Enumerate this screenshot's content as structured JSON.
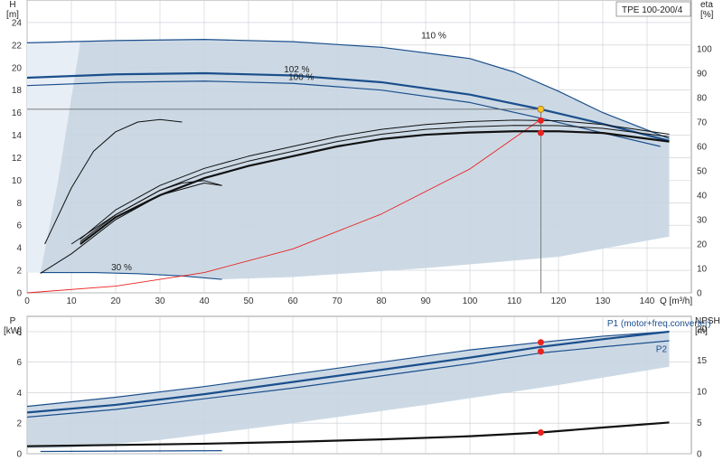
{
  "model": "TPE 100-200/4",
  "colors": {
    "envelope": "#c7d5e2",
    "envelope_light": "#e8eef6",
    "curve_blue": "#1b4f8c",
    "curve_black": "#111111",
    "system": "#e8231f",
    "duty_point": "#e8231f",
    "operating_point": "#f4c430",
    "grid": "#c8ccd2"
  },
  "chart_data": [
    {
      "type": "line",
      "name": "pump-performance",
      "xlabel": "Q [m³/h]",
      "ylabel": "H\n[m]",
      "y2label": "eta\n[%]",
      "xlim": [
        0,
        150
      ],
      "ylim": [
        0,
        26
      ],
      "y2lim": [
        0,
        120
      ],
      "x_ticks": [
        0,
        10,
        20,
        30,
        40,
        50,
        60,
        70,
        80,
        90,
        100,
        110,
        120,
        130,
        140
      ],
      "y_ticks": [
        0,
        2,
        4,
        6,
        8,
        10,
        12,
        14,
        16,
        18,
        20,
        22,
        24
      ],
      "y2_ticks": [
        0,
        10,
        20,
        30,
        40,
        50,
        60,
        70,
        80,
        90,
        100
      ],
      "curve_labels": [
        "110 %",
        "102 %",
        "100 %",
        "30 %"
      ],
      "series": [
        {
          "name": "110 %",
          "axis": "H",
          "color": "#1b4f8c",
          "width": 1.2,
          "x": [
            0,
            20,
            40,
            60,
            80,
            100,
            110,
            120,
            130,
            145
          ],
          "y": [
            22.2,
            22.4,
            22.5,
            22.3,
            21.8,
            20.8,
            19.6,
            17.9,
            16.0,
            13.7
          ]
        },
        {
          "name": "102 %",
          "axis": "H",
          "color": "#1b4f8c",
          "width": 2.2,
          "x": [
            0,
            20,
            40,
            60,
            80,
            100,
            116,
            130,
            145
          ],
          "y": [
            19.1,
            19.4,
            19.5,
            19.3,
            18.7,
            17.6,
            16.3,
            15.0,
            13.5
          ]
        },
        {
          "name": "100 %",
          "axis": "H",
          "color": "#1b4f8c",
          "width": 1.2,
          "x": [
            0,
            20,
            40,
            60,
            80,
            100,
            116,
            130,
            143
          ],
          "y": [
            18.4,
            18.7,
            18.8,
            18.6,
            18.0,
            16.9,
            15.5,
            14.2,
            13.0
          ]
        },
        {
          "name": "30 %",
          "axis": "H",
          "color": "#1b4f8c",
          "width": 1.2,
          "x": [
            3,
            15,
            25,
            35,
            44
          ],
          "y": [
            1.8,
            1.8,
            1.7,
            1.5,
            1.2
          ]
        },
        {
          "name": "system",
          "axis": "H",
          "color": "#e8231f",
          "width": 0.9,
          "x": [
            0,
            20,
            40,
            60,
            80,
            100,
            116
          ],
          "y": [
            0,
            0.6,
            1.8,
            3.9,
            7.0,
            11.0,
            15.4
          ]
        },
        {
          "name": "eta-main",
          "axis": "eta",
          "color": "#111111",
          "width": 2.2,
          "x": [
            12,
            20,
            30,
            40,
            50,
            60,
            70,
            80,
            90,
            100,
            110,
            120,
            130,
            145
          ],
          "y": [
            20,
            31,
            40,
            47,
            52,
            56,
            60,
            63,
            64.8,
            65.7,
            66.2,
            66.2,
            65.5,
            62
          ]
        },
        {
          "name": "eta-upper",
          "axis": "eta",
          "color": "#111111",
          "width": 1,
          "x": [
            12,
            20,
            30,
            40,
            50,
            60,
            70,
            80,
            90,
            100,
            110,
            120,
            130,
            145
          ],
          "y": [
            22,
            34,
            44,
            51,
            56,
            60,
            64,
            67,
            69,
            70.2,
            70.8,
            70.5,
            69,
            65
          ]
        },
        {
          "name": "eta-mid",
          "axis": "eta",
          "color": "#111111",
          "width": 1,
          "x": [
            12,
            20,
            30,
            40,
            50,
            60,
            70,
            80,
            90,
            100,
            110,
            120,
            130,
            145
          ],
          "y": [
            21,
            32,
            42,
            49,
            54,
            58,
            62,
            65,
            67,
            68,
            68.6,
            68.5,
            67.4,
            64
          ]
        },
        {
          "name": "eta-30",
          "axis": "eta",
          "color": "#111111",
          "width": 1,
          "x": [
            3,
            10,
            20,
            30,
            40,
            44
          ],
          "y": [
            8,
            16,
            30,
            40,
            45,
            44
          ]
        },
        {
          "name": "eta-30-lower",
          "axis": "eta",
          "color": "#111111",
          "width": 1,
          "x": [
            10,
            20,
            30,
            35,
            40,
            44
          ],
          "y": [
            20,
            32,
            42,
            45,
            46,
            44
          ]
        },
        {
          "name": "eta-low",
          "axis": "eta",
          "color": "#111111",
          "width": 1,
          "x": [
            4,
            10,
            15,
            20,
            25,
            30,
            35
          ],
          "y": [
            20,
            43,
            58,
            66,
            70,
            71,
            70
          ]
        }
      ],
      "duty_points": [
        {
          "x": 116,
          "y": 16.3,
          "axis": "H",
          "kind": "operating"
        },
        {
          "x": 116,
          "y": 15.3,
          "axis": "H",
          "kind": "duty"
        },
        {
          "x": 116,
          "y": 14.2,
          "axis": "H",
          "kind": "duty"
        }
      ],
      "reference_lines": {
        "h": 16.3,
        "q": 116
      }
    },
    {
      "type": "line",
      "name": "power-npsh",
      "xlabel": "",
      "ylabel": "P\n[kW]",
      "y2label": "NPSH\n[m]",
      "xlim": [
        0,
        150
      ],
      "ylim": [
        0,
        9
      ],
      "y2lim": [
        0,
        22
      ],
      "y_ticks": [
        0,
        2,
        4,
        6,
        8
      ],
      "y2_ticks": [
        0,
        5,
        10,
        15,
        20
      ],
      "curve_labels": [
        "P1 (motor+freq.converter)",
        "P2"
      ],
      "series": [
        {
          "name": "P1 (motor+freq.converter)",
          "axis": "P",
          "color": "#1b4f8c",
          "width": 2.2,
          "x": [
            0,
            20,
            40,
            60,
            80,
            100,
            116,
            130,
            145
          ],
          "y": [
            2.7,
            3.2,
            3.9,
            4.7,
            5.5,
            6.3,
            7.0,
            7.5,
            8.0
          ]
        },
        {
          "name": "P2",
          "axis": "P",
          "color": "#1b4f8c",
          "width": 1.2,
          "x": [
            0,
            20,
            40,
            60,
            80,
            100,
            116,
            130,
            145
          ],
          "y": [
            2.4,
            2.9,
            3.6,
            4.3,
            5.1,
            5.9,
            6.6,
            7.0,
            7.4
          ]
        },
        {
          "name": "P-upper",
          "axis": "P",
          "color": "#1b4f8c",
          "width": 1.2,
          "x": [
            0,
            20,
            40,
            60,
            80,
            100,
            116,
            130,
            145
          ],
          "y": [
            3.1,
            3.7,
            4.4,
            5.2,
            6.0,
            6.8,
            7.3,
            7.7,
            8.0
          ]
        },
        {
          "name": "P-30",
          "axis": "P",
          "color": "#1b4f8c",
          "width": 1.2,
          "x": [
            3,
            20,
            44
          ],
          "y": [
            0.15,
            0.17,
            0.2
          ]
        },
        {
          "name": "NPSH",
          "axis": "NPSH",
          "color": "#111111",
          "width": 2.2,
          "x": [
            0,
            20,
            40,
            60,
            80,
            100,
            116,
            130,
            145
          ],
          "y": [
            1.2,
            1.4,
            1.6,
            1.9,
            2.3,
            2.8,
            3.4,
            4.2,
            5.0
          ]
        }
      ],
      "duty_points": [
        {
          "x": 116,
          "y": 7.3,
          "axis": "P"
        },
        {
          "x": 116,
          "y": 6.7,
          "axis": "P"
        },
        {
          "x": 116,
          "y": 3.4,
          "axis": "NPSH"
        }
      ]
    }
  ]
}
